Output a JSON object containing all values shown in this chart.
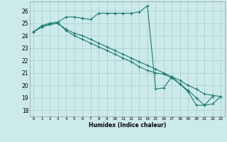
{
  "xlabel": "Humidex (Indice chaleur)",
  "ylabel": "",
  "background_color": "#cdeaea",
  "grid_color": "#afd4d4",
  "line_color": "#1a7a6e",
  "xlim": [
    -0.5,
    23.5
  ],
  "ylim": [
    17.5,
    26.75
  ],
  "yticks": [
    18,
    19,
    20,
    21,
    22,
    23,
    24,
    25,
    26
  ],
  "xticks": [
    0,
    1,
    2,
    3,
    4,
    5,
    6,
    7,
    8,
    9,
    10,
    11,
    12,
    13,
    14,
    15,
    16,
    17,
    18,
    19,
    20,
    21,
    22,
    23
  ],
  "series": [
    {
      "x": [
        0,
        1,
        2,
        3,
        4,
        5,
        6,
        7,
        8,
        9,
        10,
        11,
        12,
        13,
        14,
        15,
        16,
        17,
        18,
        19,
        20,
        21,
        22
      ],
      "y": [
        24.3,
        24.8,
        25.0,
        25.1,
        25.5,
        25.5,
        25.4,
        25.3,
        25.8,
        25.8,
        25.8,
        25.8,
        25.8,
        25.9,
        26.4,
        19.7,
        19.8,
        20.7,
        20.1,
        19.5,
        18.4,
        18.4,
        19.1
      ]
    },
    {
      "x": [
        0,
        1,
        2,
        3,
        4,
        5,
        6,
        7,
        8,
        9,
        10,
        11,
        12,
        13,
        14,
        15,
        16,
        17,
        18,
        19,
        20,
        21,
        22,
        23
      ],
      "y": [
        24.3,
        24.7,
        24.9,
        25.0,
        24.5,
        24.2,
        24.0,
        23.7,
        23.4,
        23.1,
        22.8,
        22.5,
        22.2,
        21.9,
        21.6,
        21.3,
        21.0,
        20.7,
        20.4,
        20.0,
        19.7,
        19.3,
        19.2,
        19.1
      ]
    },
    {
      "x": [
        0,
        1,
        2,
        3,
        4,
        5,
        6,
        7,
        8,
        9,
        10,
        11,
        12,
        13,
        14,
        15,
        16,
        17,
        18,
        19,
        20,
        21,
        22,
        23
      ],
      "y": [
        24.3,
        24.7,
        24.9,
        25.0,
        24.4,
        24.0,
        23.7,
        23.4,
        23.1,
        22.8,
        22.5,
        22.2,
        21.9,
        21.5,
        21.2,
        21.0,
        20.9,
        20.6,
        20.1,
        19.6,
        19.0,
        18.4,
        18.5,
        19.1
      ]
    }
  ]
}
